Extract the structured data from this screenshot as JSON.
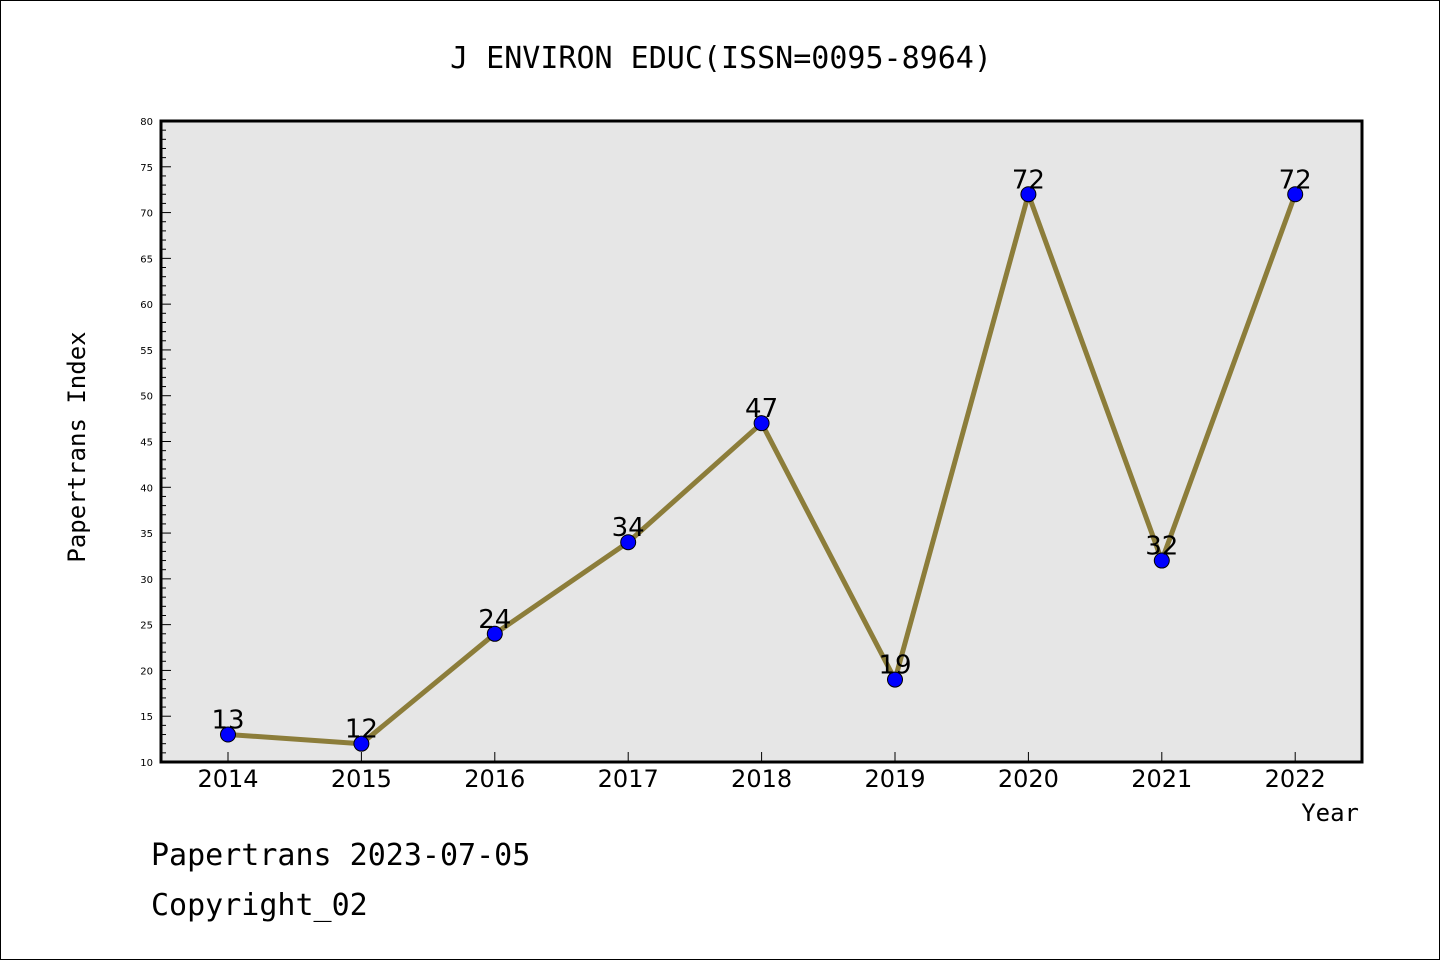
{
  "chart_data": {
    "type": "line",
    "title": "J ENVIRON EDUC(ISSN=0095-8964)",
    "xlabel": "Year",
    "ylabel": "Papertrans Index",
    "categories": [
      "2014",
      "2015",
      "2016",
      "2017",
      "2018",
      "2019",
      "2020",
      "2021",
      "2022"
    ],
    "series": [
      {
        "values": [
          13,
          12,
          24,
          34,
          47,
          19,
          72,
          32,
          72
        ]
      }
    ],
    "data_labels": [
      "13",
      "12",
      "24",
      "34",
      "47",
      "19",
      "72",
      "32",
      "72"
    ],
    "ylim": [
      10,
      80
    ],
    "y_ticks": [
      "10",
      "15",
      "20",
      "25",
      "30",
      "35",
      "40",
      "45",
      "50",
      "55",
      "60",
      "65",
      "70",
      "75",
      "80"
    ],
    "grid": false,
    "legend": "none",
    "colors": {
      "plot_background": "#e6e6e6",
      "line": "#8c7d3a",
      "marker": "#0000ff",
      "marker_edge": "#000000"
    }
  },
  "footer": {
    "line1": "Papertrans 2023-07-05",
    "line2": "Copyright_02"
  }
}
